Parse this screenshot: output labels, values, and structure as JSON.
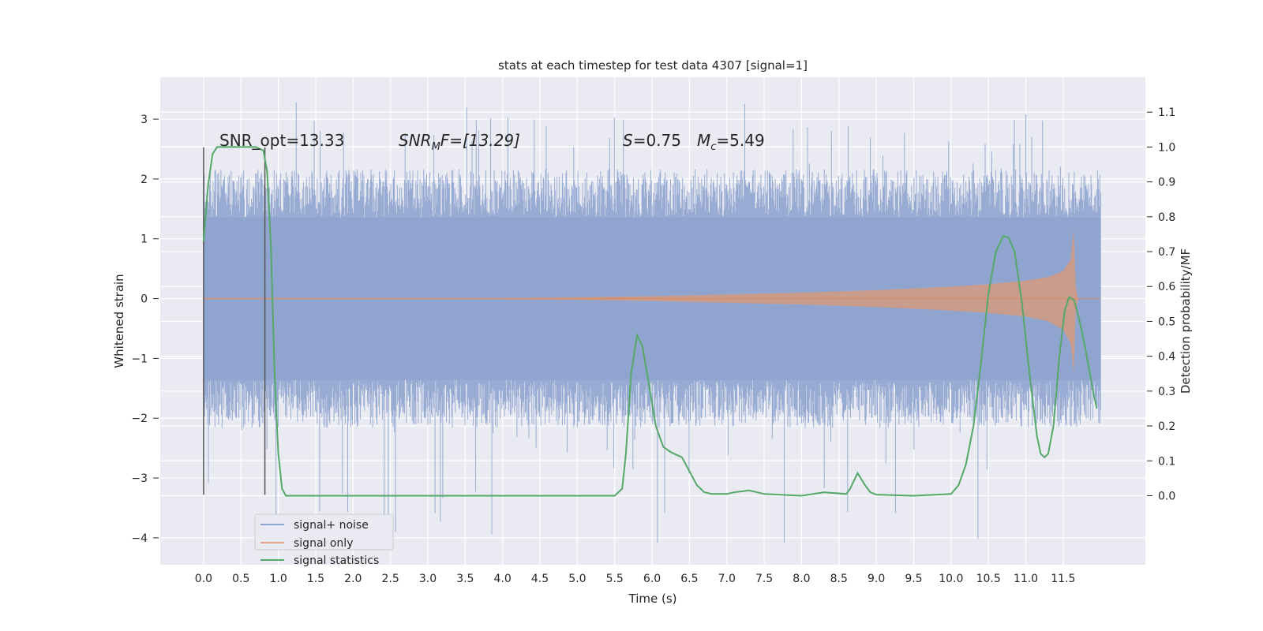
{
  "chart_data": {
    "type": "line",
    "title": "stats at each timestep for test data 4307 [signal=1]",
    "xlabel": "Time (s)",
    "ylabel": "Whitened strain",
    "y2label": "Detection probability/MF",
    "xlim": [
      -0.58,
      12.6
    ],
    "ylim": [
      -4.45,
      3.7
    ],
    "y2lim": [
      -0.198,
      1.2
    ],
    "x_ticks": [
      "0.0",
      "0.5",
      "1.0",
      "1.5",
      "2.0",
      "2.5",
      "3.0",
      "3.5",
      "4.0",
      "4.5",
      "5.0",
      "5.5",
      "6.0",
      "6.5",
      "7.0",
      "7.5",
      "8.0",
      "8.5",
      "9.0",
      "9.5",
      "10.0",
      "10.5",
      "11.0",
      "11.5"
    ],
    "y_ticks": [
      "−4",
      "−3",
      "−2",
      "−1",
      "0",
      "1",
      "2",
      "3"
    ],
    "y2_ticks": [
      "0.0",
      "0.1",
      "0.2",
      "0.3",
      "0.4",
      "0.5",
      "0.6",
      "0.7",
      "0.8",
      "0.9",
      "1.0",
      "1.1"
    ],
    "grid": true,
    "legend_placement": "lower-left",
    "annotations": {
      "snr_opt": "SNR_opt=13.33",
      "snr_mf": "SNR",
      "snr_mf_sub": "M",
      "snr_mf_rest": "F=[13.29]",
      "s_value": "S=0.75",
      "mc_main": "M",
      "mc_sub": "c",
      "mc_rest": "=5.49"
    },
    "vlines": [
      {
        "x": 0.0,
        "y_range": [
          -3.28,
          2.53
        ]
      },
      {
        "x": 0.82,
        "y_range": [
          -3.28,
          2.53
        ]
      }
    ],
    "series": [
      {
        "name": "signal+ noise",
        "color": "#8fa5cf",
        "axis": "left",
        "envelope_percentiles": {
          "upper_typical": 1.6,
          "upper_spike": 3.3,
          "lower_typical": -1.6,
          "lower_spike": -4.1
        },
        "x_range": [
          0.0,
          12.0
        ]
      },
      {
        "name": "signal only",
        "color": "#dd8452",
        "axis": "left",
        "envelope": {
          "x": [
            0.0,
            4.0,
            5.0,
            6.0,
            7.0,
            8.0,
            9.0,
            10.0,
            10.5,
            11.0,
            11.3,
            11.5,
            11.6,
            11.64,
            11.67,
            11.7,
            12.0
          ],
          "upper": [
            0.01,
            0.01,
            0.02,
            0.04,
            0.07,
            0.1,
            0.14,
            0.2,
            0.24,
            0.3,
            0.36,
            0.46,
            0.65,
            1.15,
            0.2,
            0.0,
            0.0
          ],
          "lower": [
            -0.01,
            -0.01,
            -0.02,
            -0.04,
            -0.07,
            -0.1,
            -0.14,
            -0.2,
            -0.24,
            -0.3,
            -0.38,
            -0.52,
            -0.75,
            -1.25,
            -0.2,
            0.0,
            0.0
          ]
        },
        "x_range": [
          0.0,
          12.0
        ]
      },
      {
        "name": "signal statistics",
        "color": "#55a868",
        "axis": "right",
        "x": [
          0.0,
          0.06,
          0.12,
          0.18,
          0.3,
          0.4,
          0.5,
          0.6,
          0.7,
          0.75,
          0.8,
          0.85,
          0.9,
          0.95,
          1.0,
          1.05,
          1.1,
          1.5,
          2.0,
          3.0,
          4.0,
          5.0,
          5.5,
          5.6,
          5.65,
          5.72,
          5.8,
          5.87,
          5.95,
          6.05,
          6.15,
          6.25,
          6.4,
          6.5,
          6.6,
          6.7,
          6.8,
          7.0,
          7.1,
          7.3,
          7.5,
          8.0,
          8.3,
          8.6,
          8.65,
          8.75,
          8.85,
          8.92,
          9.0,
          9.5,
          10.0,
          10.1,
          10.2,
          10.3,
          10.4,
          10.5,
          10.6,
          10.7,
          10.77,
          10.85,
          10.95,
          11.05,
          11.15,
          11.2,
          11.25,
          11.3,
          11.37,
          11.45,
          11.52,
          11.58,
          11.65,
          11.72,
          11.8,
          11.9,
          11.95
        ],
        "y": [
          0.73,
          0.89,
          0.98,
          1.0,
          1.0,
          1.0,
          1.0,
          1.0,
          1.0,
          0.995,
          0.99,
          0.93,
          0.72,
          0.35,
          0.12,
          0.02,
          0.0,
          0.0,
          0.0,
          0.0,
          0.0,
          0.0,
          0.0,
          0.02,
          0.12,
          0.35,
          0.46,
          0.43,
          0.33,
          0.2,
          0.14,
          0.125,
          0.11,
          0.07,
          0.03,
          0.01,
          0.005,
          0.005,
          0.01,
          0.015,
          0.005,
          0.0,
          0.01,
          0.005,
          0.02,
          0.065,
          0.03,
          0.01,
          0.003,
          0.0,
          0.005,
          0.03,
          0.09,
          0.2,
          0.38,
          0.58,
          0.7,
          0.745,
          0.74,
          0.7,
          0.55,
          0.35,
          0.17,
          0.12,
          0.11,
          0.12,
          0.2,
          0.4,
          0.53,
          0.57,
          0.56,
          0.5,
          0.42,
          0.3,
          0.25
        ]
      }
    ]
  }
}
